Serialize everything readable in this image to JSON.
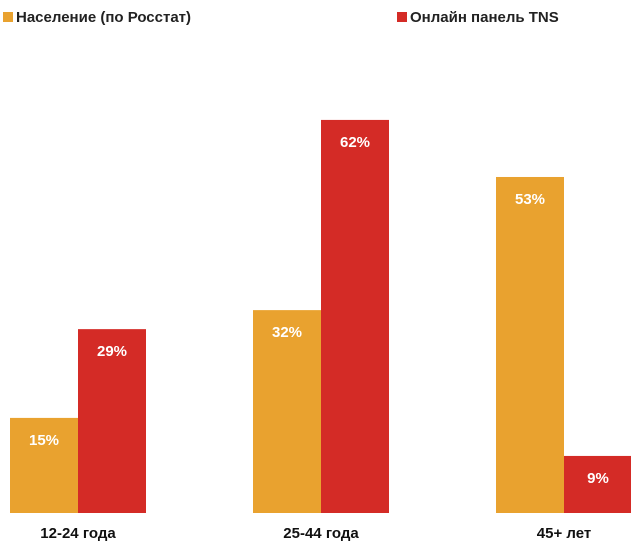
{
  "chart_data": {
    "type": "bar",
    "categories": [
      "12-24 года",
      "25-44 года",
      "45+ лет"
    ],
    "series": [
      {
        "name": "Население (по Росстат)",
        "color": "#e9a22f",
        "values": [
          15,
          32,
          53
        ],
        "value_labels": [
          "15%",
          "32%",
          "53%"
        ]
      },
      {
        "name": "Онлайн панель TNS",
        "color": "#d42b26",
        "values": [
          29,
          62,
          9
        ],
        "value_labels": [
          "29%",
          "62%",
          "9%"
        ]
      }
    ]
  }
}
